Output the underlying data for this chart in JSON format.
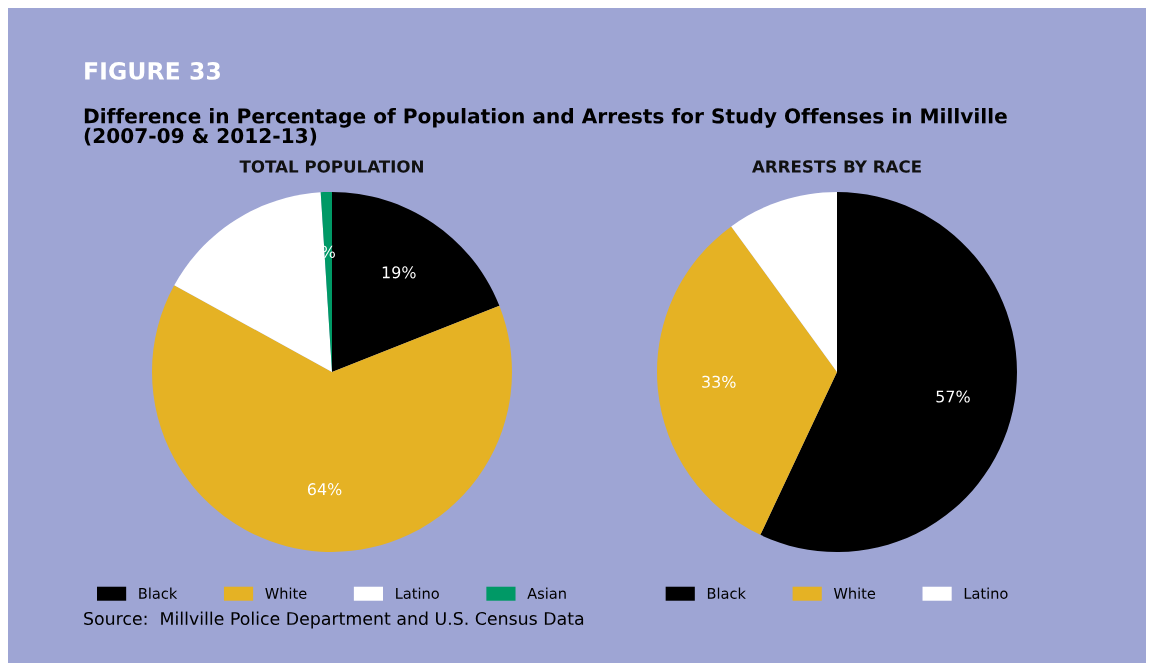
{
  "chart_data": [
    {
      "type": "pie",
      "title": "TOTAL POPULATION",
      "categories": [
        "Black",
        "White",
        "Latino",
        "Asian"
      ],
      "values": [
        19,
        64,
        16,
        1
      ],
      "colors": [
        "#000000",
        "#e5b224",
        "#ffffff",
        "#009966"
      ],
      "value_labels": [
        "19%",
        "64%",
        null,
        "%"
      ],
      "legend": "bottom",
      "annotations": [
        "FIGURE 33",
        "Difference in Percentage of Population and Arrests for Study Offenses in Millville\n(2007-09 & 2012-13)",
        "Source:  Millville Police Department and U.S. Census Data"
      ]
    },
    {
      "type": "pie",
      "title": "ARRESTS BY RACE",
      "categories": [
        "Black",
        "White",
        "Latino"
      ],
      "values": [
        57,
        33,
        10
      ],
      "colors": [
        "#000000",
        "#e5b224",
        "#ffffff"
      ],
      "value_labels": [
        "57%",
        "33%",
        null
      ],
      "legend": "bottom"
    }
  ]
}
